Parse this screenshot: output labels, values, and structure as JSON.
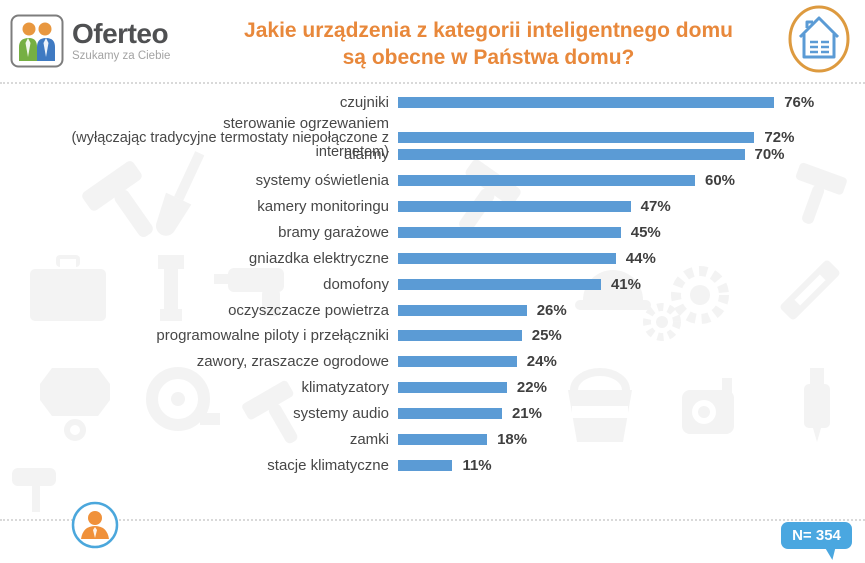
{
  "header": {
    "logo_name": "Oferteo",
    "logo_tagline": "Szukamy za Ciebie",
    "title_line1": "Jakie urządzenia z kategorii inteligentnego domu",
    "title_line2": "są obecne w Państwa domu?"
  },
  "chart_data": {
    "type": "bar",
    "orientation": "horizontal",
    "unit": "%",
    "title": "Jakie urządzenia z kategorii inteligentnego domu są obecne w Państwa domu?",
    "xlim": [
      0,
      100
    ],
    "grid": false,
    "legend": "none",
    "categories": [
      {
        "label": "czujniki",
        "sublabel": ""
      },
      {
        "label": "sterowanie ogrzewaniem",
        "sublabel": "(wyłączając tradycyjne termostaty niepołączone z internetem)"
      },
      {
        "label": "alarmy",
        "sublabel": ""
      },
      {
        "label": "systemy oświetlenia",
        "sublabel": ""
      },
      {
        "label": "kamery monitoringu",
        "sublabel": ""
      },
      {
        "label": "bramy garażowe",
        "sublabel": ""
      },
      {
        "label": "gniazdka elektryczne",
        "sublabel": ""
      },
      {
        "label": "domofony",
        "sublabel": ""
      },
      {
        "label": "oczyszczacze powietrza",
        "sublabel": ""
      },
      {
        "label": "programowalne piloty i przełączniki",
        "sublabel": ""
      },
      {
        "label": "zawory, zraszacze ogrodowe",
        "sublabel": ""
      },
      {
        "label": "klimatyzatory",
        "sublabel": ""
      },
      {
        "label": "systemy audio",
        "sublabel": ""
      },
      {
        "label": "zamki",
        "sublabel": ""
      },
      {
        "label": "stacje klimatyczne",
        "sublabel": ""
      }
    ],
    "values": [
      76,
      72,
      70,
      60,
      47,
      45,
      44,
      41,
      26,
      25,
      24,
      22,
      21,
      18,
      11
    ],
    "value_labels": [
      "76%",
      "72%",
      "70%",
      "60%",
      "47%",
      "45%",
      "44%",
      "41%",
      "26%",
      "25%",
      "24%",
      "22%",
      "21%",
      "18%",
      "11%"
    ]
  },
  "footer": {
    "sample_label": "N= 354"
  },
  "icons": {
    "logo_icon": "two-people-icon",
    "header_right": "smart-home-house-icon",
    "footer_left": "person-in-circle-icon"
  },
  "colors": {
    "bar": "#5b9bd5",
    "title": "#e8883b",
    "badge": "#4aa7e0",
    "logo_green": "#76af43",
    "logo_blue": "#3f7ac2",
    "logo_orange": "#e8973f",
    "house_orange": "#dd9a3f",
    "house_blue": "#5b9bd5",
    "watermark": "#f3f3f3"
  }
}
